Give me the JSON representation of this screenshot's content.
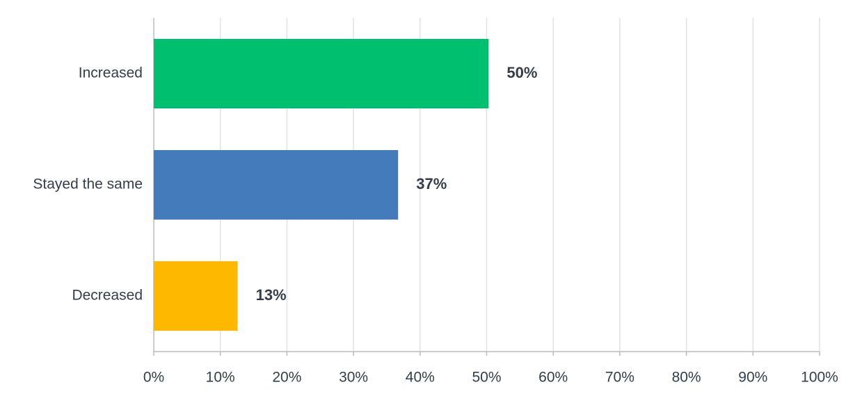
{
  "chart_data": {
    "type": "hbar",
    "categories": [
      "Increased",
      "Stayed the same",
      "Decreased"
    ],
    "values": [
      50.3,
      36.7,
      12.6
    ],
    "value_labels": [
      "50%",
      "37%",
      "13%"
    ],
    "colors": [
      "#00bf6f",
      "#437bbb",
      "#ffb800"
    ],
    "xlim": [
      0,
      100
    ],
    "xticks": [
      {
        "value": 0,
        "label": "0%"
      },
      {
        "value": 10,
        "label": "10%"
      },
      {
        "value": 20,
        "label": "20%"
      },
      {
        "value": 30,
        "label": "30%"
      },
      {
        "value": 40,
        "label": "40%"
      },
      {
        "value": 50,
        "label": "50%"
      },
      {
        "value": 60,
        "label": "60%"
      },
      {
        "value": 70,
        "label": "70%"
      },
      {
        "value": 80,
        "label": "80%"
      },
      {
        "value": 90,
        "label": "90%"
      },
      {
        "value": 100,
        "label": "100%"
      }
    ],
    "grid": true
  }
}
